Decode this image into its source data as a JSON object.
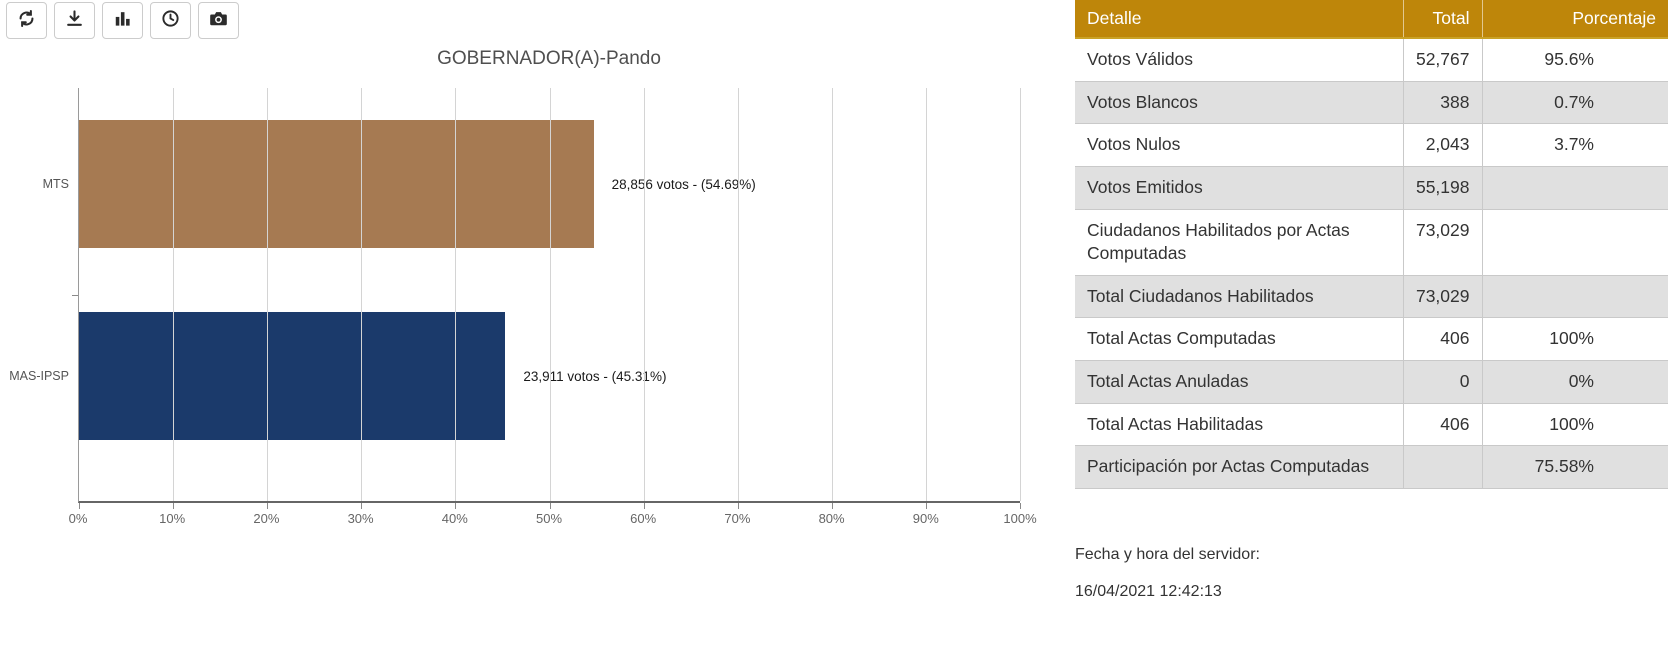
{
  "toolbar": {
    "buttons": [
      {
        "icon": "refresh"
      },
      {
        "icon": "download"
      },
      {
        "icon": "bar-chart"
      },
      {
        "icon": "clock"
      },
      {
        "icon": "camera"
      }
    ]
  },
  "chart_data": {
    "type": "bar",
    "orientation": "horizontal",
    "title": "GOBERNADOR(A)-Pando",
    "categories": [
      "MTS",
      "MAS-IPSP"
    ],
    "values": [
      54.69,
      45.31
    ],
    "votes": [
      28856,
      23911
    ],
    "bar_labels": [
      "28,856 votos - (54.69%)",
      "23,911 votos - (45.31%)"
    ],
    "bar_colors": [
      "#a67a52",
      "#1b3a6b"
    ],
    "xlabel": "",
    "ylabel": "",
    "xlim": [
      0,
      100
    ],
    "xticks": [
      "0%",
      "10%",
      "20%",
      "30%",
      "40%",
      "50%",
      "60%",
      "70%",
      "80%",
      "90%",
      "100%"
    ],
    "grid": true
  },
  "table": {
    "headers": [
      "Detalle",
      "Total",
      "Porcentaje"
    ],
    "header_bg": "#be860a",
    "alt_row_bg": "#e0e0e0",
    "rows": [
      {
        "label": "Votos Válidos",
        "total": "52,767",
        "pct": "95.6%"
      },
      {
        "label": "Votos Blancos",
        "total": "388",
        "pct": "0.7%"
      },
      {
        "label": "Votos Nulos",
        "total": "2,043",
        "pct": "3.7%"
      },
      {
        "label": "Votos Emitidos",
        "total": "55,198",
        "pct": ""
      },
      {
        "label": "Ciudadanos Habilitados por Actas Computadas",
        "total": "73,029",
        "pct": ""
      },
      {
        "label": "Total Ciudadanos Habilitados",
        "total": "73,029",
        "pct": ""
      },
      {
        "label": "Total Actas Computadas",
        "total": "406",
        "pct": "100%"
      },
      {
        "label": "Total Actas Anuladas",
        "total": "0",
        "pct": "0%"
      },
      {
        "label": "Total Actas Habilitadas",
        "total": "406",
        "pct": "100%"
      },
      {
        "label": "Participación por Actas Computadas",
        "total": "",
        "pct": "75.58%"
      }
    ]
  },
  "footer": {
    "server_time_label": "Fecha y hora del servidor:",
    "server_time_value": "16/04/2021 12:42:13"
  }
}
